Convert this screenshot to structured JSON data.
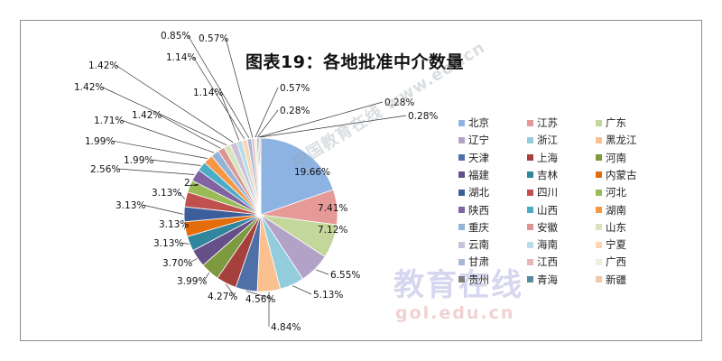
{
  "watermarks": {
    "diagonal": "中国教育在线",
    "diagonal_url": "www.eol.cn",
    "logo": "教育在线",
    "logo_url": "gol.edu.cn"
  },
  "chart_data": {
    "type": "pie",
    "title": "图表19：各地批准中介数量",
    "legend_placement": "right",
    "slices": [
      {
        "name": "北京",
        "value": 19.66,
        "label": "19.66%",
        "color": "#8db3e2"
      },
      {
        "name": "江苏",
        "value": 7.41,
        "label": "7.41%",
        "color": "#e69a98"
      },
      {
        "name": "广东",
        "value": 7.12,
        "label": "7.12%",
        "color": "#c4d79b"
      },
      {
        "name": "辽宁",
        "value": 6.55,
        "label": "6.55%",
        "color": "#b3a2c7"
      },
      {
        "name": "浙江",
        "value": 5.13,
        "label": "5.13%",
        "color": "#93cddd"
      },
      {
        "name": "黑龙江",
        "value": 4.84,
        "label": "4.84%",
        "color": "#fac090"
      },
      {
        "name": "天津",
        "value": 4.56,
        "label": "4.56%",
        "color": "#4f6fa8"
      },
      {
        "name": "上海",
        "value": 4.27,
        "label": "4.27%",
        "color": "#a5403d"
      },
      {
        "name": "河南",
        "value": 3.99,
        "label": "3.99%",
        "color": "#7d9a3e"
      },
      {
        "name": "福建",
        "value": 3.7,
        "label": "3.70%",
        "color": "#66508a"
      },
      {
        "name": "吉林",
        "value": 3.13,
        "label": "3.13%",
        "color": "#31859c"
      },
      {
        "name": "内蒙古",
        "value": 3.13,
        "label": "3.13%",
        "color": "#e46c0a"
      },
      {
        "name": "湖北",
        "value": 3.13,
        "label": "3.13%",
        "color": "#3c5f9c"
      },
      {
        "name": "四川",
        "value": 3.13,
        "label": "3.13%",
        "color": "#c0504d"
      },
      {
        "name": "河北",
        "value": 2.56,
        "label": "2.56%",
        "color": "#9bbb59"
      },
      {
        "name": "陕西",
        "value": 2.56,
        "label": "2.56%",
        "color": "#8064a2"
      },
      {
        "name": "山西",
        "value": 1.99,
        "label": "1.99%",
        "color": "#4bacc6"
      },
      {
        "name": "湖南",
        "value": 1.99,
        "label": "1.99%",
        "color": "#f79646"
      },
      {
        "name": "重庆",
        "value": 1.71,
        "label": "1.71%",
        "color": "#95b3d7"
      },
      {
        "name": "安徽",
        "value": 1.42,
        "label": "1.42%",
        "color": "#d99694"
      },
      {
        "name": "山东",
        "value": 1.42,
        "label": "1.42%",
        "color": "#d7e4bd"
      },
      {
        "name": "云南",
        "value": 1.42,
        "label": "1.42%",
        "color": "#ccc1da"
      },
      {
        "name": "海南",
        "value": 1.14,
        "label": "1.14%",
        "color": "#b7dee8"
      },
      {
        "name": "宁夏",
        "value": 1.14,
        "label": "1.14%",
        "color": "#fcd5b5"
      },
      {
        "name": "甘肃",
        "value": 0.85,
        "label": "0.85%",
        "color": "#a6b9d9"
      },
      {
        "name": "江西",
        "value": 0.57,
        "label": "0.57%",
        "color": "#e6b9b8"
      },
      {
        "name": "广西",
        "value": 0.57,
        "label": "0.57%",
        "color": "#ebf1de"
      },
      {
        "name": "贵州",
        "value": 0.28,
        "label": "0.28%",
        "color": "#7f7f7f"
      },
      {
        "name": "青海",
        "value": 0.28,
        "label": "0.28%",
        "color": "#5a8a9c"
      },
      {
        "name": "新疆",
        "value": 0.28,
        "label": "0.28%",
        "color": "#f2c9a8"
      }
    ]
  }
}
